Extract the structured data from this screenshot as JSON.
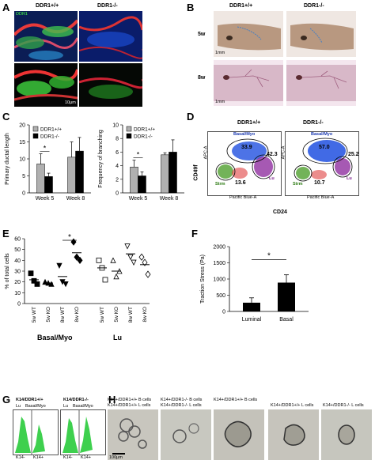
{
  "panels": {
    "A": {
      "label": "A",
      "genotype_wt": "DDR1+/+",
      "genotype_ko": "DDR1-/-",
      "scale_bar": "10μm",
      "overlay_tag": "DDR1"
    },
    "B": {
      "label": "B",
      "genotype_wt": "DDR1+/+",
      "genotype_ko": "DDR1-/-",
      "row1": "5w",
      "row2": "8w",
      "scale_bar": "1mm"
    },
    "C": {
      "label": "C"
    },
    "D": {
      "label": "D",
      "genotype_wt": "DDR1+/+",
      "genotype_ko": "DDR1-/-",
      "ylabel": "CD49f",
      "xlabel": "CD24",
      "gates": {
        "basal": "Basal/Myo",
        "lu": "Lu",
        "strm": "Strm"
      },
      "wt_values": {
        "basal": "33.9",
        "lu": "42.3",
        "strm": "13.6"
      },
      "ko_values": {
        "basal": "57.0",
        "lu": "25.2",
        "strm": "10.7"
      },
      "axis_y": "APC-A",
      "axis_x": "Pacific Blue-A"
    },
    "E": {
      "label": "E",
      "group1": "Basal/Myo",
      "group2": "Lu"
    },
    "F": {
      "label": "F"
    },
    "G": {
      "label": "G",
      "title_wt": "K14/DDR1+/+",
      "title_ko": "K14/DDR1-/-",
      "gate_lu": "Lu",
      "gate_basal": "Basal/Myo",
      "x_neg": "K14-",
      "x_pos": "K14+"
    },
    "H": {
      "label": "H",
      "col1_line1": "K14+/DDR1+/+ B cells",
      "col1_line2": "K14+/DDR1+/+ L cells",
      "col2_line1": "K14+/DDR1-/- B cells",
      "col2_line2": "K14+/DDR1-/- L cells",
      "col3_line1": "K14+/DDR1+/+ B cells",
      "col4_line1": "K14+/DDR1+/+ L cells",
      "col5_line1": "K14+/DDR1-/- L cells",
      "scale_bar": "100μm"
    }
  },
  "chart_data": [
    {
      "type": "bar",
      "id": "C-left",
      "categories": [
        "Week 5",
        "Week 8"
      ],
      "series": [
        {
          "name": "DDR1+/+",
          "values": [
            8.5,
            10.5
          ],
          "err": [
            3.0,
            4.5
          ],
          "color": "#b0b0b0"
        },
        {
          "name": "DDR1-/-",
          "values": [
            4.8,
            12.3
          ],
          "err": [
            1.0,
            4.0
          ],
          "color": "#000000"
        }
      ],
      "ylabel": "Primary ductal length",
      "ylim": [
        0,
        20
      ],
      "yticks": [
        0,
        5,
        10,
        15,
        20
      ],
      "significance": [
        {
          "category": "Week 5",
          "mark": "*"
        }
      ],
      "legend": "top-left"
    },
    {
      "type": "bar",
      "id": "C-right",
      "categories": [
        "Week 5",
        "Week 8"
      ],
      "series": [
        {
          "name": "DDR1+/+",
          "values": [
            3.8,
            5.6
          ],
          "err": [
            1.0,
            0.3
          ],
          "color": "#b0b0b0"
        },
        {
          "name": "DDR1-/-",
          "values": [
            2.5,
            6.0
          ],
          "err": [
            0.6,
            1.8
          ],
          "color": "#000000"
        }
      ],
      "ylabel": "Frequency of branching",
      "ylim": [
        0,
        10
      ],
      "yticks": [
        0,
        2,
        4,
        6,
        8,
        10
      ],
      "significance": [
        {
          "category": "Week 5",
          "mark": "*"
        }
      ],
      "legend": "top-left"
    },
    {
      "type": "scatter",
      "id": "E",
      "ylabel": "% of total cells",
      "ylim": [
        0,
        60
      ],
      "yticks": [
        0,
        10,
        20,
        30,
        40,
        50,
        60
      ],
      "categories": [
        "5w WT",
        "5w KO",
        "8w WT",
        "8w KO",
        "5w WT",
        "5w KO",
        "8w WT",
        "8w KO"
      ],
      "series": [
        {
          "category": "5w WT",
          "group": "Basal/Myo",
          "marker": "square",
          "filled": true,
          "values": [
            28,
            21,
            18
          ],
          "mean": 22
        },
        {
          "category": "5w KO",
          "group": "Basal/Myo",
          "marker": "triangle",
          "filled": true,
          "values": [
            20,
            19,
            18
          ],
          "mean": 19
        },
        {
          "category": "8w WT",
          "group": "Basal/Myo",
          "marker": "triangle-down",
          "filled": true,
          "values": [
            35,
            20,
            18
          ],
          "mean": 25
        },
        {
          "category": "8w KO",
          "group": "Basal/Myo",
          "marker": "diamond",
          "filled": true,
          "values": [
            57,
            43,
            40
          ],
          "mean": 47
        },
        {
          "category": "5w WT",
          "group": "Lu",
          "marker": "square",
          "filled": false,
          "values": [
            40,
            33,
            22
          ],
          "mean": 33
        },
        {
          "category": "5w KO",
          "group": "Lu",
          "marker": "triangle",
          "filled": false,
          "values": [
            40,
            25,
            30
          ],
          "mean": 30
        },
        {
          "category": "8w WT",
          "group": "Lu",
          "marker": "triangle-down",
          "filled": false,
          "values": [
            53,
            43,
            38
          ],
          "mean": 46
        },
        {
          "category": "8w KO",
          "group": "Lu",
          "marker": "diamond",
          "filled": false,
          "values": [
            43,
            38,
            27
          ],
          "mean": 36
        }
      ],
      "significance": [
        {
          "between": [
            "8w WT",
            "8w KO"
          ],
          "group": "Basal/Myo",
          "mark": "*"
        }
      ]
    },
    {
      "type": "bar",
      "id": "F",
      "categories": [
        "Luminal",
        "Basal"
      ],
      "values": [
        270,
        890
      ],
      "err": [
        150,
        240
      ],
      "ylabel": "Traction Stress (Pa)",
      "ylim": [
        0,
        2000
      ],
      "yticks": [
        0,
        500,
        1000,
        1500,
        2000
      ],
      "significance": [
        {
          "between": [
            "Luminal",
            "Basal"
          ],
          "mark": "*"
        }
      ]
    }
  ]
}
